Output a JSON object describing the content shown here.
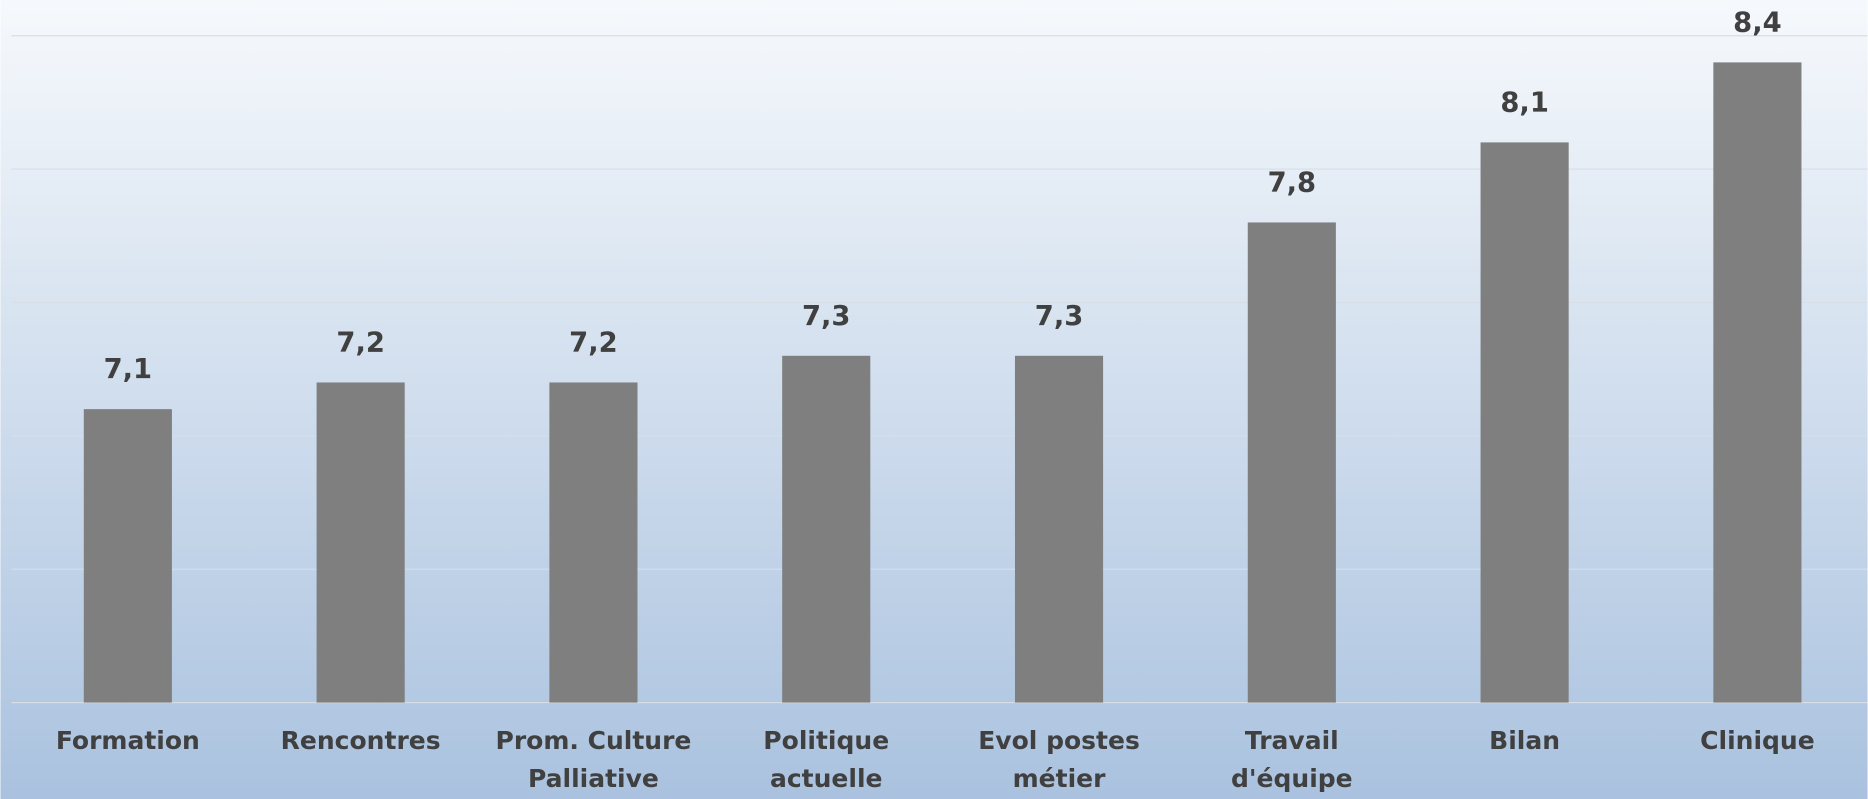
{
  "chart_data": {
    "type": "bar",
    "categories": [
      "Formation",
      "Rencontres",
      "Prom. Culture\nPalliative",
      "Politique\nactuelle",
      "Evol postes\nmétier",
      "Travail\nd'équipe",
      "Bilan",
      "Clinique"
    ],
    "values": [
      7.1,
      7.2,
      7.2,
      7.3,
      7.3,
      7.8,
      8.1,
      8.4
    ],
    "value_labels": [
      "7,1",
      "7,2",
      "7,2",
      "7,3",
      "7,3",
      "7,8",
      "8,1",
      "8,4"
    ],
    "color": "#7f7f7f",
    "ylim": [
      6,
      8.5
    ],
    "yticks": [
      6,
      6.5,
      7,
      7.5,
      8,
      8.5
    ],
    "grid": true
  }
}
